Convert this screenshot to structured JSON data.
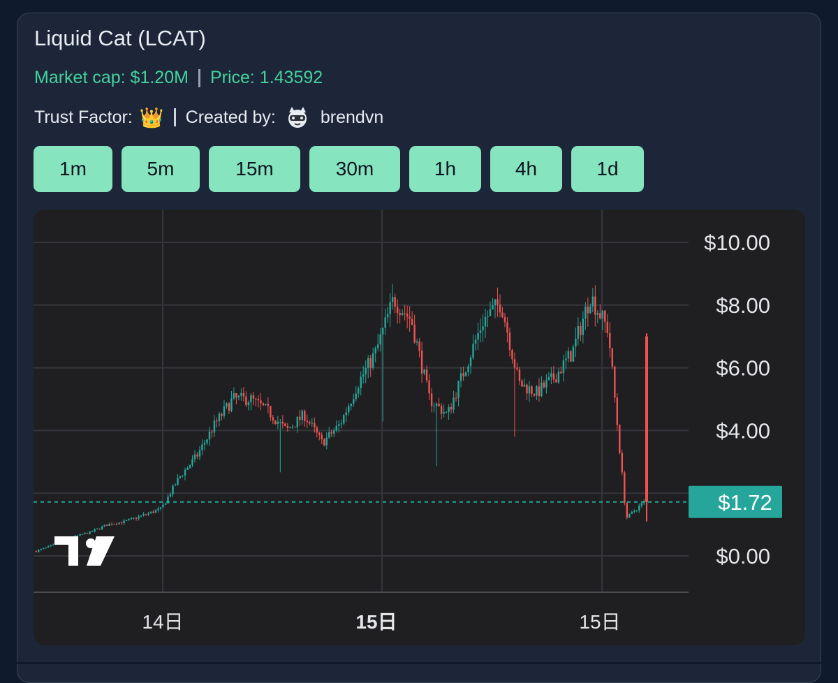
{
  "token": {
    "name": "Liquid Cat",
    "symbol": "(LCAT)",
    "market_cap": "Market cap: $1.20M",
    "price": "Price: 1.43592",
    "trust_label": "Trust Factor:",
    "trust_icon": "crown-icon",
    "created_label": "Created by:",
    "creator": "brendvn"
  },
  "timeframes": [
    "1m",
    "5m",
    "15m",
    "30m",
    "1h",
    "4h",
    "1d"
  ],
  "colors": {
    "accent": "#86e5bf",
    "up": "#26a69a",
    "down": "#ef5350",
    "price_tag": "#26a69a",
    "market_text": "#45d29e"
  },
  "chart_data": {
    "type": "candlestick",
    "title": "",
    "y_ticks": [
      "$10.00",
      "$8.00",
      "$6.00",
      "$4.00",
      "$0.00"
    ],
    "x_ticks": [
      "14日",
      "15日",
      "15日"
    ],
    "x_tick_bold": [
      false,
      true,
      false
    ],
    "current_price_label": "$1.72",
    "ylim": [
      0,
      10
    ],
    "grid": true,
    "watermark_icon": "tradingview-logo-icon",
    "series_close_approx": [
      0.15,
      0.35,
      0.6,
      0.75,
      1.0,
      1.1,
      1.3,
      1.5,
      2.5,
      3.2,
      4.2,
      5.0,
      5.0,
      4.6,
      4.0,
      4.5,
      3.6,
      4.2,
      5.5,
      6.5,
      8.2,
      7.5,
      5.0,
      4.5,
      6.0,
      7.5,
      8.1,
      5.5,
      5.2,
      5.7,
      6.5,
      8.3,
      7.2,
      1.2,
      1.72
    ]
  }
}
